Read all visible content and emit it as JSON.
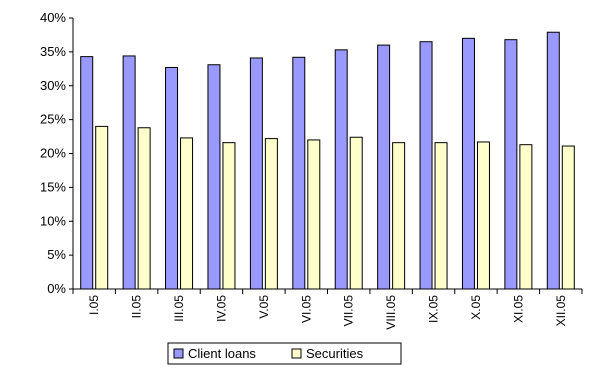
{
  "chart_data": {
    "type": "bar",
    "title": "",
    "xlabel": "",
    "ylabel": "",
    "categories": [
      "I.05",
      "II.05",
      "III.05",
      "IV.05",
      "V.05",
      "VI.05",
      "VII.05",
      "VIII.05",
      "IX.05",
      "X.05",
      "XI.05",
      "XII.05"
    ],
    "series": [
      {
        "name": "Client loans",
        "color": "#9999ff",
        "values": [
          34.3,
          34.4,
          32.7,
          33.1,
          34.1,
          34.2,
          35.3,
          36.0,
          36.5,
          37.0,
          36.8,
          37.9
        ]
      },
      {
        "name": "Securities",
        "color": "#ffffcc",
        "values": [
          24.0,
          23.8,
          22.3,
          21.6,
          22.2,
          22.0,
          22.4,
          21.6,
          21.6,
          21.7,
          21.3,
          21.1
        ]
      }
    ],
    "ylim": [
      0,
      40
    ],
    "yticks": [
      0,
      5,
      10,
      15,
      20,
      25,
      30,
      35,
      40
    ],
    "ytick_labels": [
      "0%",
      "5%",
      "10%",
      "15%",
      "20%",
      "25%",
      "30%",
      "35%",
      "40%"
    ],
    "grid": false,
    "legend_position": "bottom"
  }
}
